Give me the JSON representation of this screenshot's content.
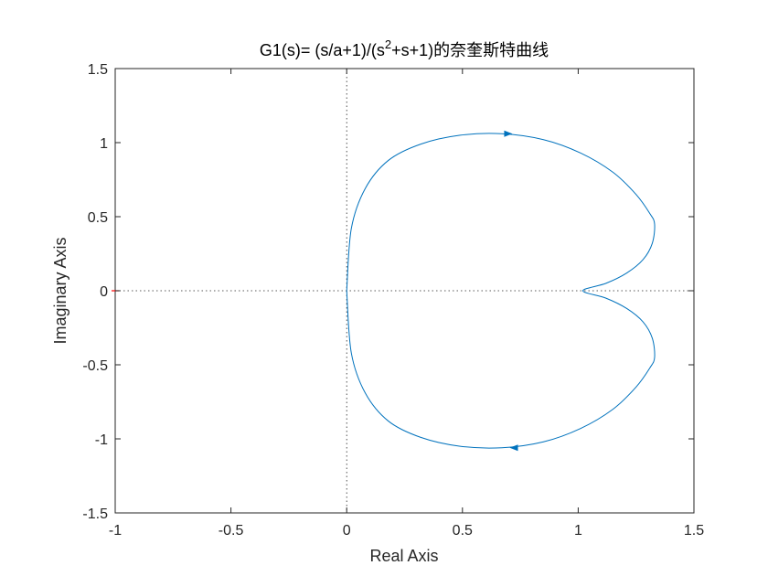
{
  "chart_data": {
    "type": "line",
    "title_parts": {
      "main": "G1(s)= (s/a+1)/(s",
      "sup": "2",
      "tail": "+s+1)的奈奎斯特曲线"
    },
    "xlabel": "Real Axis",
    "ylabel": "Imaginary Axis",
    "xlim": [
      -1,
      1.5
    ],
    "ylim": [
      -1.5,
      1.5
    ],
    "xticks": [
      -1,
      -0.5,
      0,
      0.5,
      1,
      1.5
    ],
    "yticks": [
      -1.5,
      -1,
      -0.5,
      0,
      0.5,
      1,
      1.5
    ],
    "xtick_labels": [
      "-1",
      "-0.5",
      "0",
      "0.5",
      "1",
      "1.5"
    ],
    "ytick_labels": [
      "-1.5",
      "-1",
      "-0.5",
      "0",
      "0.5",
      "1",
      "1.5"
    ],
    "grid": false,
    "reference_lines": {
      "x": 0,
      "y": 0,
      "style": "dotted"
    },
    "critical_point": {
      "x": -1,
      "y": 0
    },
    "series": [
      {
        "x": [
          0.0,
          0.02,
          0.08,
          0.18,
          0.32,
          0.49,
          0.67,
          0.85,
          1.01,
          1.15,
          1.25,
          1.31,
          1.33,
          1.32,
          1.28,
          1.21,
          1.12,
          1.02
        ],
        "y": [
          0.0,
          0.42,
          0.69,
          0.88,
          0.99,
          1.05,
          1.06,
          1.02,
          0.93,
          0.8,
          0.65,
          0.52,
          0.45,
          0.32,
          0.21,
          0.12,
          0.05,
          0.0
        ],
        "mirror": true,
        "arrows": [
          {
            "x": 0.7,
            "y": 1.06,
            "direction": "right"
          },
          {
            "x": 0.72,
            "y": -1.06,
            "direction": "left"
          }
        ]
      }
    ],
    "colors": {
      "line": "#0072BD",
      "critical_point": "#FF0000",
      "axes": "#262626",
      "reference_lines": "#262626"
    }
  }
}
